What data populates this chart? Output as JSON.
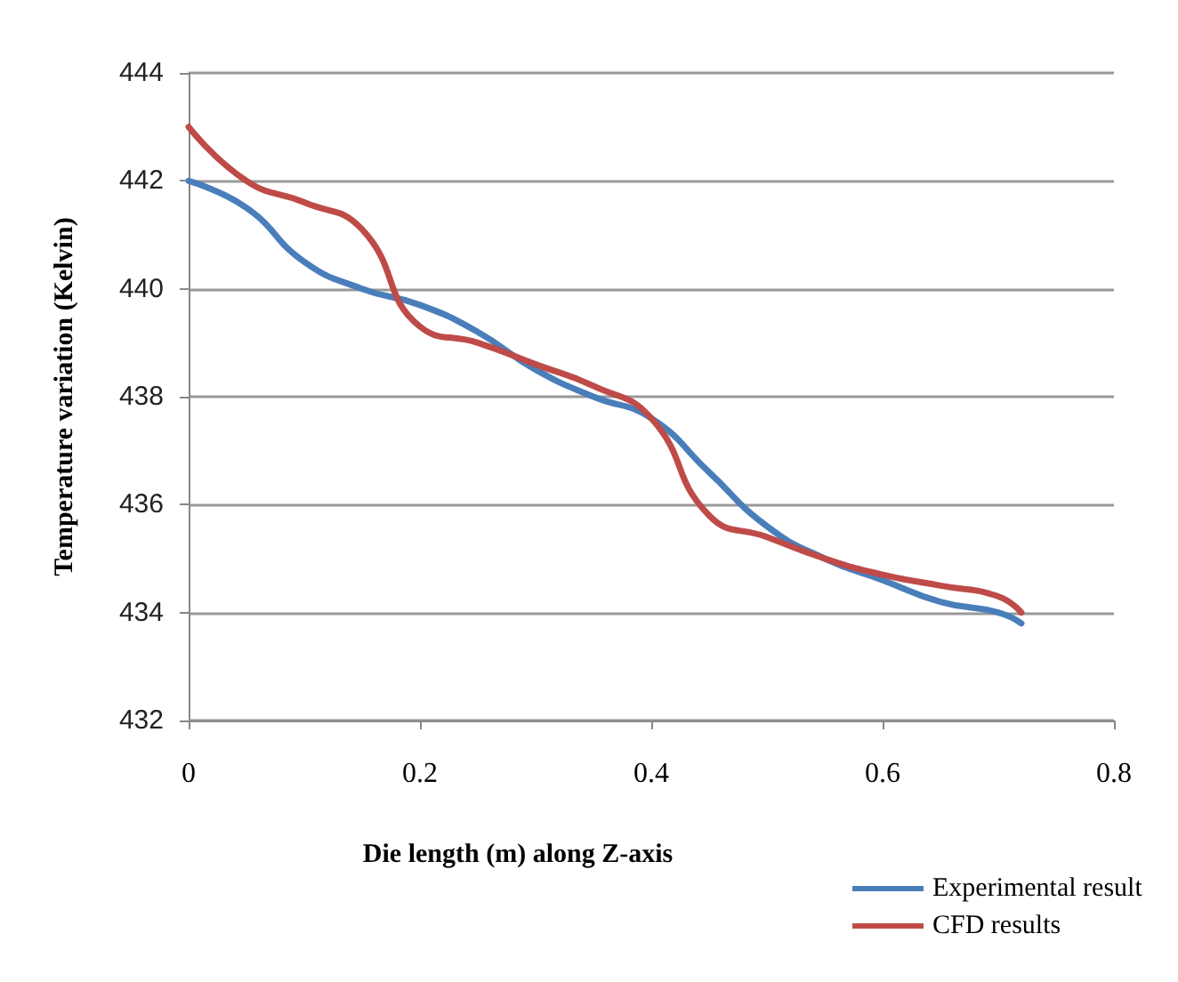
{
  "chart_data": {
    "type": "line",
    "xlabel": "Die length (m) along Z-axis",
    "ylabel": "Temperature variation (Kelvin)",
    "xlim": [
      0,
      0.8
    ],
    "xticks": [
      0,
      0.2,
      0.4,
      0.6,
      0.8
    ],
    "ylim": [
      432,
      444
    ],
    "yticks": [
      432,
      434,
      436,
      438,
      440,
      442,
      444
    ],
    "grid": "y",
    "legend": "bottom right",
    "marker": "none",
    "line_style": "solid",
    "series": [
      {
        "name": "Experimental result",
        "color": "#4a7ebb",
        "x": [
          0,
          0.05,
          0.1,
          0.15,
          0.2,
          0.25,
          0.3,
          0.35,
          0.4,
          0.45,
          0.5,
          0.55,
          0.6,
          0.65,
          0.7,
          0.72
        ],
        "values": [
          442,
          441.5,
          440.5,
          440.0,
          439.7,
          439.2,
          438.5,
          438.0,
          437.6,
          436.6,
          435.6,
          435.0,
          434.6,
          434.2,
          434.0,
          433.8
        ]
      },
      {
        "name": "CFD results",
        "color": "#be4b48",
        "x": [
          0,
          0.05,
          0.1,
          0.15,
          0.2,
          0.25,
          0.3,
          0.35,
          0.4,
          0.45,
          0.5,
          0.55,
          0.6,
          0.65,
          0.7,
          0.72
        ],
        "values": [
          443,
          442.0,
          441.6,
          441.1,
          439.3,
          439.0,
          438.6,
          438.2,
          437.6,
          435.8,
          435.4,
          435.0,
          434.7,
          434.5,
          434.3,
          434.0
        ]
      }
    ]
  }
}
